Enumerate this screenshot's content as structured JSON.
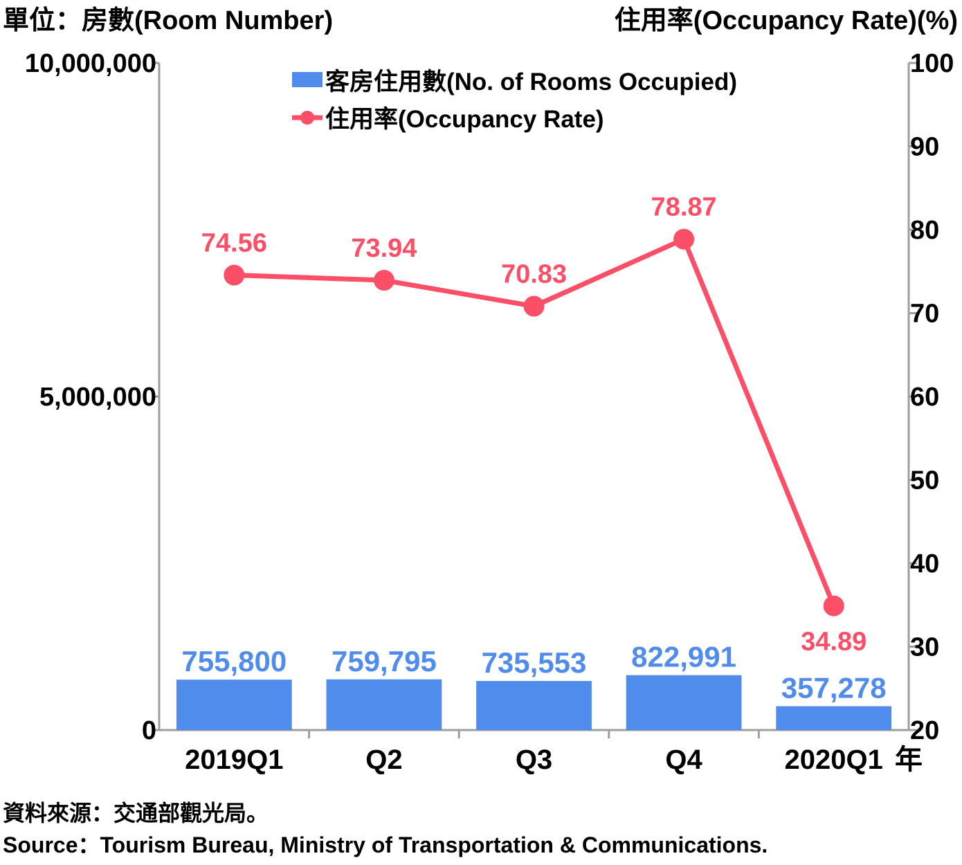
{
  "chart_data": {
    "type": "bar",
    "left_axis_title": "單位：房數(Room Number)",
    "right_axis_title": "住用率(Occupancy Rate)(%)",
    "categories": [
      "2019Q1",
      "Q2",
      "Q3",
      "Q4",
      "2020Q1"
    ],
    "x_suffix": "年",
    "left_axis": {
      "ylim": [
        0,
        10000000
      ],
      "ticks": [
        0,
        5000000,
        10000000
      ],
      "tick_labels": [
        "0",
        "5,000,000",
        "10,000,000"
      ]
    },
    "right_axis": {
      "ylim": [
        20,
        100
      ],
      "ticks": [
        20,
        30,
        40,
        50,
        60,
        70,
        80,
        90,
        100
      ],
      "tick_labels": [
        "20",
        "30",
        "40",
        "50",
        "60",
        "70",
        "80",
        "90",
        "100"
      ]
    },
    "series": [
      {
        "name": "客房住用數(No. of Rooms Occupied)",
        "type": "bar",
        "axis": "left",
        "values": [
          755800,
          759795,
          735553,
          822991,
          357278
        ],
        "labels": [
          "755,800",
          "759,795",
          "735,553",
          "822,991",
          "357,278"
        ],
        "color": "#4f8cec",
        "label_color": "#4f8cec"
      },
      {
        "name": "住用率(Occupancy Rate)",
        "type": "line",
        "axis": "right",
        "values": [
          74.56,
          73.94,
          70.83,
          78.87,
          34.89
        ],
        "labels": [
          "74.56",
          "73.94",
          "70.83",
          "78.87",
          "34.89"
        ],
        "color": "#fb4f67",
        "label_color": "#fb4f67"
      }
    ],
    "grid": false,
    "legend_position": "top-center"
  },
  "footer": {
    "source_zh": "資料來源：交通部觀光局。",
    "source_en": "Source：Tourism Bureau, Ministry of Transportation & Communications."
  }
}
